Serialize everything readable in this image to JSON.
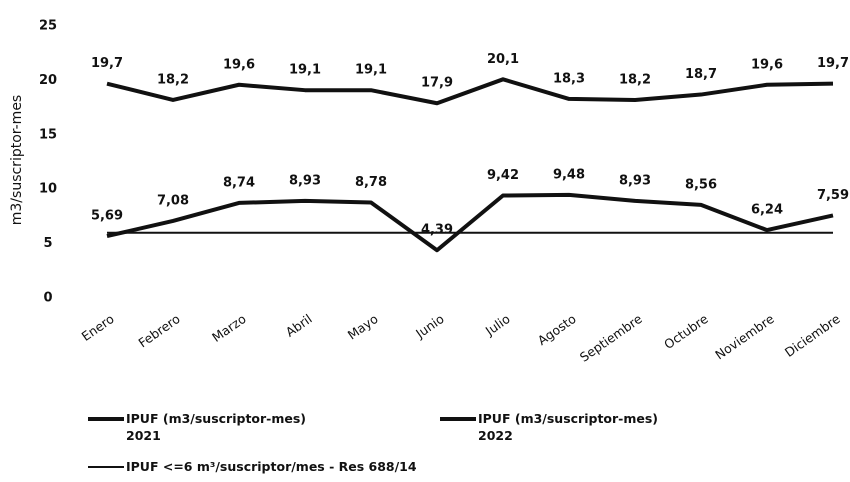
{
  "chart_data": {
    "type": "line",
    "y_label": "m3/suscriptor-mes",
    "categories": [
      "Enero",
      "Febrero",
      "Marzo",
      "Abril",
      "Mayo",
      "Junio",
      "Julio",
      "Agosto",
      "Septiembre",
      "Octubre",
      "Noviembre",
      "Diciembre"
    ],
    "series": [
      {
        "name": "IPUF (m3/suscriptor-mes) 2021",
        "color": "#111111",
        "width": 4,
        "values": [
          19.7,
          18.2,
          19.6,
          19.1,
          19.1,
          17.9,
          20.1,
          18.3,
          18.2,
          18.7,
          19.6,
          19.7
        ],
        "value_labels": [
          "19,7",
          "18,2",
          "19,6",
          "19,1",
          "19,1",
          "17,9",
          "20,1",
          "18,3",
          "18,2",
          "18,7",
          "19,6",
          "19,7"
        ]
      },
      {
        "name": "IPUF (m3/suscriptor-mes) 2022",
        "color": "#111111",
        "width": 4,
        "values": [
          5.69,
          7.08,
          8.74,
          8.93,
          8.78,
          4.39,
          9.42,
          9.48,
          8.93,
          8.56,
          6.24,
          7.59
        ],
        "value_labels": [
          "5,69",
          "7,08",
          "8,74",
          "8,93",
          "8,78",
          "4,39",
          "9,42",
          "9,48",
          "8,93",
          "8,56",
          "6,24",
          "7,59"
        ]
      },
      {
        "name": "IPUF <=6 m³/suscriptor/mes - Res 688/14",
        "color": "#111111",
        "width": 2,
        "values": [
          6,
          6,
          6,
          6,
          6,
          6,
          6,
          6,
          6,
          6,
          6,
          6
        ]
      }
    ],
    "ylim": [
      0,
      25
    ],
    "yticks": [
      0,
      5,
      10,
      15,
      20,
      25
    ],
    "grid": false
  }
}
